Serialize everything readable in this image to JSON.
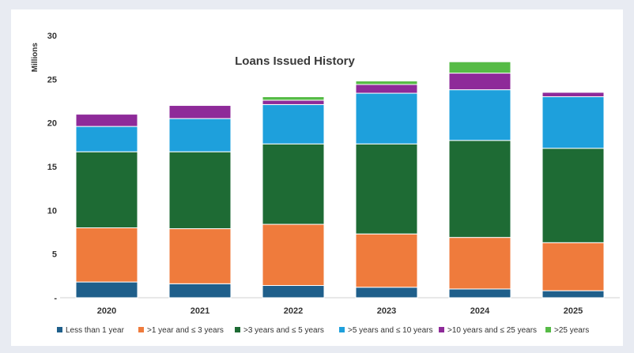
{
  "chart_data": {
    "type": "bar",
    "stacked": true,
    "title": "Loans Issued History",
    "xlabel": "",
    "ylabel": "Millions",
    "ylim": [
      0,
      30
    ],
    "yticks": [
      "-",
      "5",
      "10",
      "15",
      "20",
      "25",
      "30"
    ],
    "grid": false,
    "legend_position": "bottom",
    "categories": [
      "2020",
      "2021",
      "2022",
      "2023",
      "2024",
      "2025"
    ],
    "series": [
      {
        "name": "Less than 1 year",
        "color": "#1f5f8b",
        "values": [
          1.8,
          1.6,
          1.4,
          1.2,
          1.0,
          0.8
        ]
      },
      {
        "name": ">1 year and ≤ 3 years",
        "color": "#ef7b3c",
        "values": [
          6.2,
          6.3,
          7.0,
          6.1,
          5.9,
          5.5
        ]
      },
      {
        "name": ">3 years and ≤ 5 years",
        "color": "#1e6b34",
        "values": [
          8.7,
          8.8,
          9.2,
          10.3,
          11.1,
          10.8
        ]
      },
      {
        "name": ">5 years and ≤ 10 years",
        "color": "#1ea0dc",
        "values": [
          2.9,
          3.8,
          4.5,
          5.8,
          5.8,
          5.9
        ]
      },
      {
        "name": ">10 years and ≤ 25 years",
        "color": "#8e2a99",
        "values": [
          1.4,
          1.5,
          0.5,
          1.0,
          1.9,
          0.5
        ]
      },
      {
        "name": ">25 years",
        "color": "#56bb46",
        "values": [
          0.0,
          0.0,
          0.4,
          0.4,
          1.3,
          0.0
        ]
      }
    ]
  }
}
